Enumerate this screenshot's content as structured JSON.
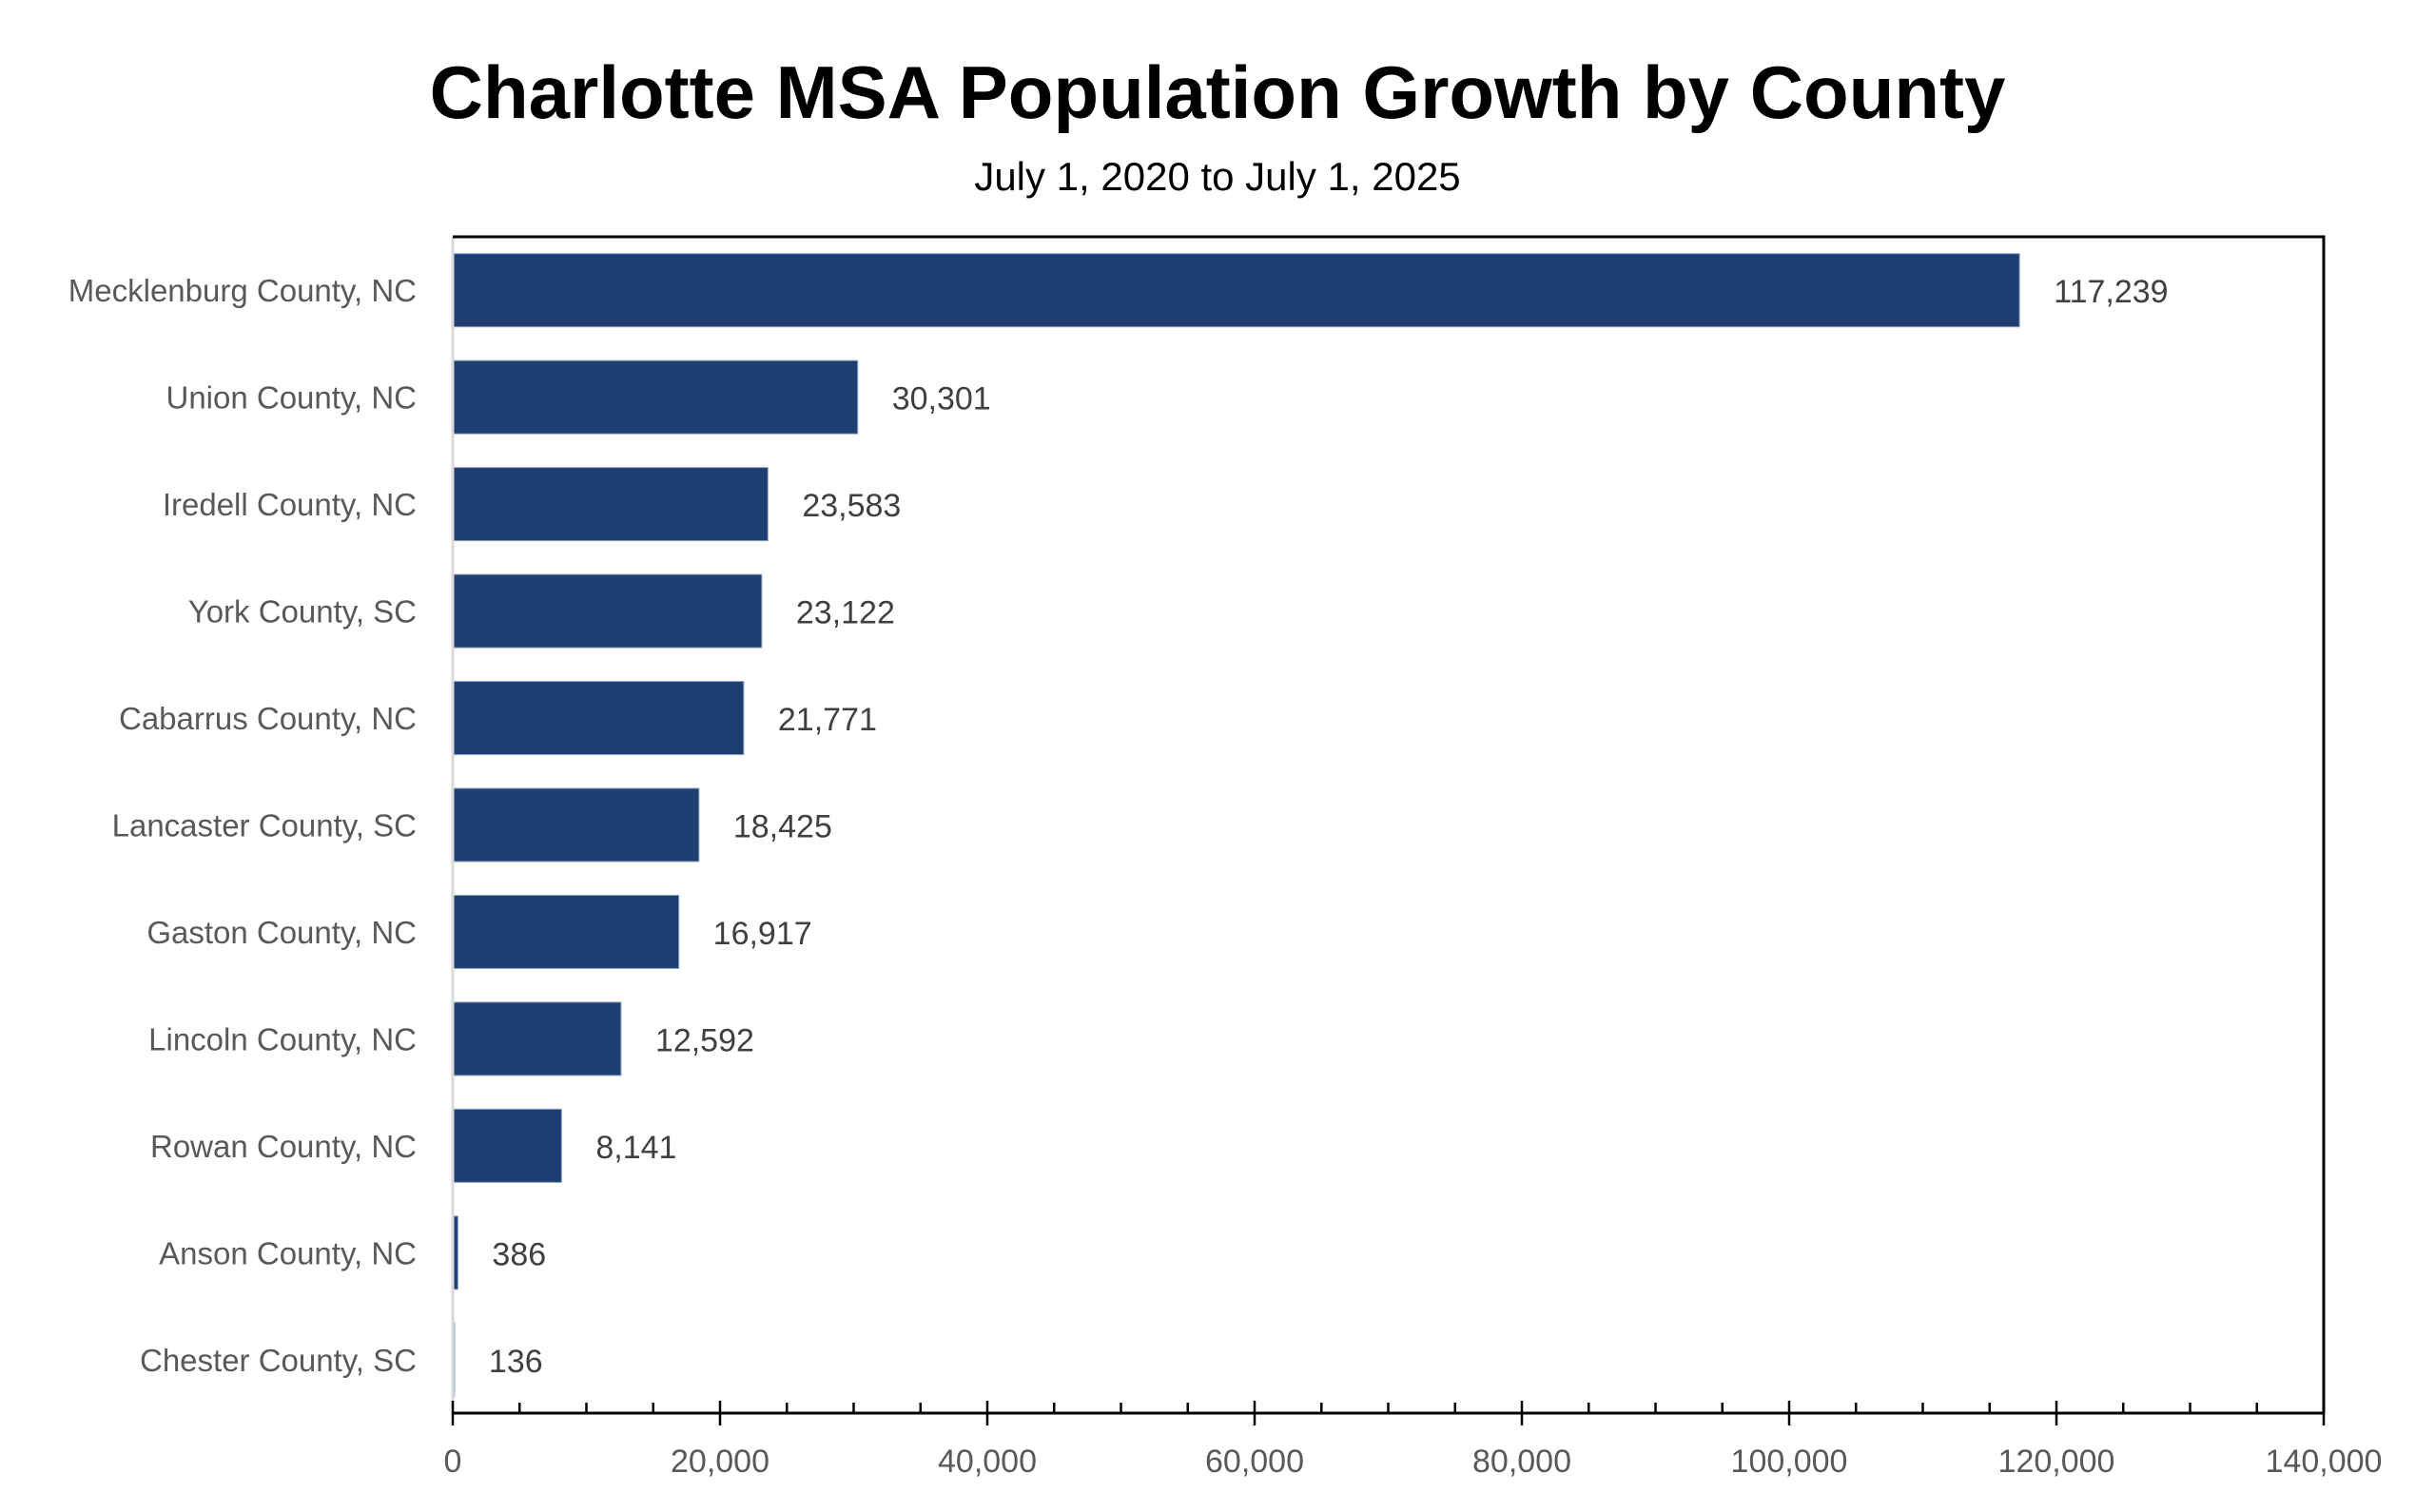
{
  "chart_data": {
    "type": "bar",
    "orientation": "horizontal",
    "title": "Charlotte MSA Population Growth by County",
    "subtitle": "July 1, 2020 to July 1, 2025",
    "xlabel": "",
    "ylabel": "",
    "categories": [
      "Mecklenburg County, NC",
      "Union County, NC",
      "Iredell County, NC",
      "York County, SC",
      "Cabarrus County, NC",
      "Lancaster County, SC",
      "Gaston County, NC",
      "Lincoln County, NC",
      "Rowan County, NC",
      "Anson County, NC",
      "Chester County, SC"
    ],
    "values": [
      117239,
      30301,
      23583,
      23122,
      21771,
      18425,
      16917,
      12592,
      8141,
      386,
      136
    ],
    "value_labels": [
      "117,239",
      "30,301",
      "23,583",
      "23,122",
      "21,771",
      "18,425",
      "16,917",
      "12,592",
      "8,141",
      "386",
      "136"
    ],
    "xlim": [
      0,
      140000
    ],
    "x_major_ticks": [
      0,
      20000,
      40000,
      60000,
      80000,
      100000,
      120000,
      140000
    ],
    "x_tick_labels": [
      "0",
      "20,000",
      "40,000",
      "60,000",
      "80,000",
      "100,000",
      "120,000",
      "140,000"
    ],
    "x_minor_tick_step": 5000,
    "grid": false,
    "legend": "none",
    "colors": {
      "bar": "#1f3e72",
      "bar_edge": "#8ea6c8",
      "frame": "#000000",
      "category_axis": "#d9d9d9",
      "category_text": "#595959",
      "value_text": "#404040"
    }
  }
}
